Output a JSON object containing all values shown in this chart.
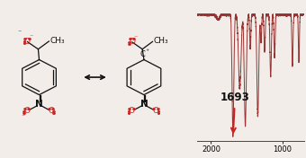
{
  "bg_color": "#f2ede8",
  "ir_line_color": "#993333",
  "arrow_color": "#cc2222",
  "annotation_label": "1693",
  "xmin": 2200,
  "xmax": 700,
  "x_ticks": [
    2000,
    1000
  ],
  "x_tick_labels": [
    "2000",
    "1000"
  ],
  "red": "#cc2222",
  "black": "#111111"
}
